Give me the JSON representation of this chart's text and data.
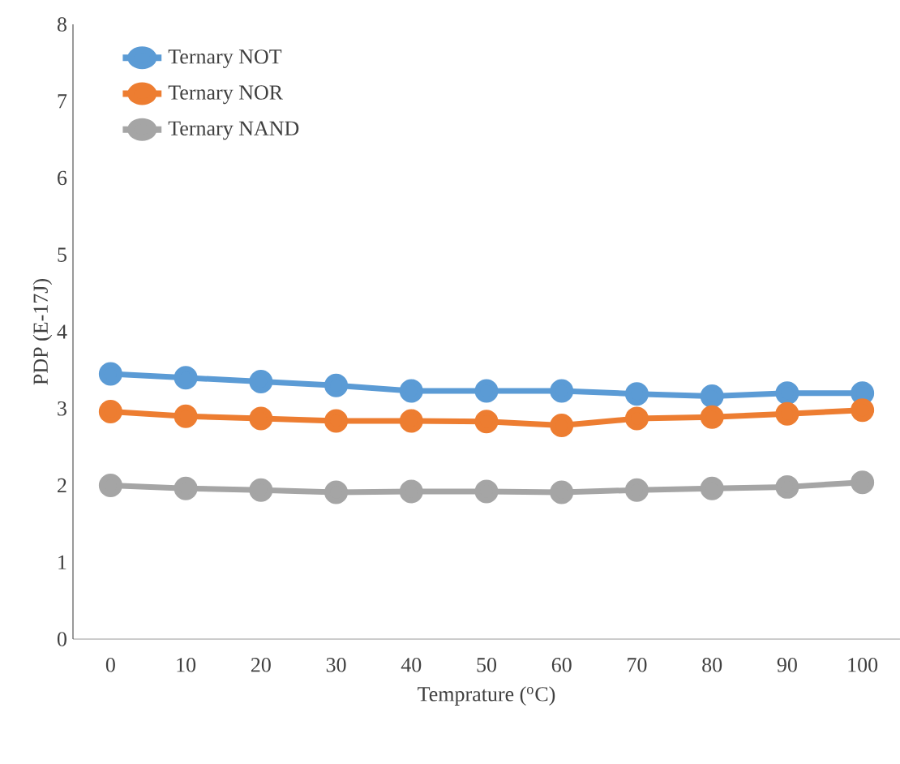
{
  "chart_data": {
    "type": "line",
    "xlabel": "Temprature ($^{o}$C)",
    "ylabel": "PDP (E-17J)",
    "categories": [
      "0",
      "10",
      "20",
      "30",
      "40",
      "50",
      "60",
      "70",
      "80",
      "90",
      "100"
    ],
    "series": [
      {
        "name": "Ternary NOT",
        "color": "#5b9bd5",
        "values": [
          3.45,
          3.4,
          3.35,
          3.3,
          3.23,
          3.23,
          3.23,
          3.19,
          3.16,
          3.2,
          3.2
        ]
      },
      {
        "name": "Ternary NOR",
        "color": "#ed7d31",
        "values": [
          2.96,
          2.9,
          2.87,
          2.84,
          2.84,
          2.83,
          2.78,
          2.87,
          2.89,
          2.93,
          2.98
        ]
      },
      {
        "name": "Ternary NAND",
        "color": "#a5a5a5",
        "values": [
          2.0,
          1.96,
          1.94,
          1.91,
          1.92,
          1.92,
          1.91,
          1.94,
          1.96,
          1.98,
          2.04
        ]
      }
    ],
    "ylim": [
      0,
      8
    ],
    "yticks": [
      0,
      1,
      2,
      3,
      4,
      5,
      6,
      7,
      8
    ],
    "grid": false,
    "legend": "top left",
    "marker": "circle",
    "line_style": "solid"
  }
}
